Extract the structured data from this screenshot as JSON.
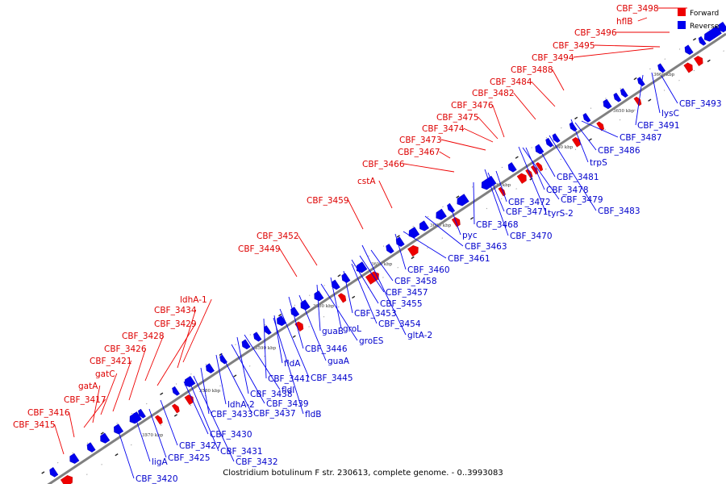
{
  "caption": "Clostridium botulinum F str. 230613, complete genome. - 0..3993083",
  "legend": {
    "forward": "Forward",
    "reverse": "Reverse"
  },
  "colors": {
    "forward": "#ee0000",
    "reverse": "#0000ee",
    "axis": "#808080"
  },
  "ticks": [
    "3570 kbp",
    "3580 kbp",
    "3590 kbp",
    "3600 kbp",
    "3610 kbp",
    "3620 kbp",
    "3630 kbp",
    "3640 kbp",
    "3650 kbp",
    "3660 kbp"
  ],
  "forward_labels": [
    "CBF_3498",
    "hflB",
    "CBF_3496",
    "CBF_3495",
    "CBF_3494",
    "CBF_3488",
    "CBF_3484",
    "CBF_3482",
    "CBF_3476",
    "CBF_3475",
    "CBF_3474",
    "CBF_3473",
    "CBF_3467",
    "CBF_3466",
    "cstA",
    "CBF_3459",
    "CBF_3452",
    "CBF_3449",
    "ldhA-1",
    "CBF_3434",
    "CBF_3429",
    "CBF_3428",
    "CBF_3426",
    "CBF_3421",
    "gatC",
    "gatA",
    "CBF_3417",
    "CBF_3416",
    "CBF_3415"
  ],
  "reverse_labels": [
    "CBF_3493",
    "lysC",
    "CBF_3491",
    "CBF_3487",
    "CBF_3486",
    "trpS",
    "CBF_3481",
    "CBF_3478",
    "CBF_3479",
    "CBF_3483",
    "CBF_3472",
    "CBF_3471",
    "tyrS-2",
    "CBF_3468",
    "CBF_3470",
    "pyc",
    "CBF_3463",
    "CBF_3461",
    "CBF_3460",
    "CBF_3458",
    "CBF_3457",
    "CBF_3455",
    "CBF_3453",
    "CBF_3454",
    "gltA-2",
    "groL",
    "groES",
    "guaB",
    "CBF_3446",
    "guaA",
    "fldA",
    "CBF_3445",
    "CBF_3441",
    "fldI",
    "CBF_3438",
    "CBF_3439",
    "fldB",
    "ldhA-2",
    "CBF_3437",
    "CBF_3433",
    "CBF_3430",
    "CBF_3427",
    "CBF_3431",
    "CBF_3425",
    "CBF_3432",
    "ligA",
    "CBF_3420"
  ]
}
